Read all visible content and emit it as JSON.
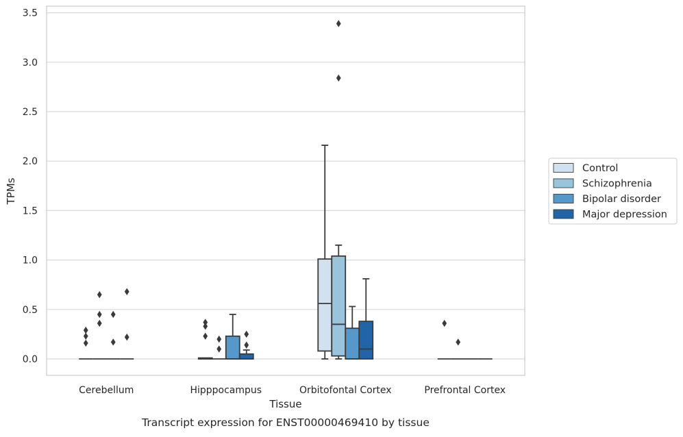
{
  "chart_data": {
    "type": "box",
    "title": "",
    "caption": "Transcript expression for ENST00000469410 by tissue",
    "xlabel": "Tissue",
    "ylabel": "TPMs",
    "ylim": [
      -0.17,
      3.56
    ],
    "yticks": [
      0.0,
      0.5,
      1.0,
      1.5,
      2.0,
      2.5,
      3.0,
      3.5
    ],
    "ytick_labels": [
      "0.0",
      "0.5",
      "1.0",
      "1.5",
      "2.0",
      "2.5",
      "3.0",
      "3.5"
    ],
    "grid": "horizontal",
    "legend_placement": "right",
    "categories": [
      "Cerebellum",
      "Hipppocampus",
      "Orbitofontal Cortex",
      "Prefrontal Cortex"
    ],
    "series": [
      {
        "name": "Control",
        "color": "#d1e1f0",
        "boxes": [
          {
            "q1": 0.0,
            "median": 0.0,
            "q3": 0.0,
            "whisker_low": 0.0,
            "whisker_high": 0.0,
            "outliers": [
              0.29,
              0.23,
              0.16
            ]
          },
          {
            "q1": 0.0,
            "median": 0.0,
            "q3": 0.01,
            "whisker_low": 0.0,
            "whisker_high": 0.01,
            "outliers": [
              0.37,
              0.33,
              0.23
            ]
          },
          {
            "q1": 0.08,
            "median": 0.56,
            "q3": 1.01,
            "whisker_low": 0.0,
            "whisker_high": 2.16,
            "outliers": []
          },
          {
            "q1": 0.0,
            "median": 0.0,
            "q3": 0.0,
            "whisker_low": 0.0,
            "whisker_high": 0.0,
            "outliers": [
              0.36
            ]
          }
        ]
      },
      {
        "name": "Schizophrenia",
        "color": "#9ac3dc",
        "boxes": [
          {
            "q1": 0.0,
            "median": 0.0,
            "q3": 0.0,
            "whisker_low": 0.0,
            "whisker_high": 0.0,
            "outliers": [
              0.65,
              0.45,
              0.36
            ]
          },
          {
            "q1": 0.0,
            "median": 0.0,
            "q3": 0.0,
            "whisker_low": 0.0,
            "whisker_high": 0.0,
            "outliers": [
              0.2,
              0.1
            ]
          },
          {
            "q1": 0.03,
            "median": 0.35,
            "q3": 1.04,
            "whisker_low": 0.0,
            "whisker_high": 1.15,
            "outliers": [
              3.39,
              2.84
            ]
          },
          {
            "q1": 0.0,
            "median": 0.0,
            "q3": 0.0,
            "whisker_low": 0.0,
            "whisker_high": 0.0,
            "outliers": [
              0.17
            ]
          }
        ]
      },
      {
        "name": "Bipolar disorder",
        "color": "#5598c9",
        "boxes": [
          {
            "q1": 0.0,
            "median": 0.0,
            "q3": 0.0,
            "whisker_low": 0.0,
            "whisker_high": 0.0,
            "outliers": [
              0.45,
              0.17
            ]
          },
          {
            "q1": 0.0,
            "median": 0.0,
            "q3": 0.23,
            "whisker_low": 0.0,
            "whisker_high": 0.45,
            "outliers": []
          },
          {
            "q1": 0.0,
            "median": 0.0,
            "q3": 0.31,
            "whisker_low": 0.0,
            "whisker_high": 0.53,
            "outliers": []
          },
          {
            "q1": 0.0,
            "median": 0.0,
            "q3": 0.0,
            "whisker_low": 0.0,
            "whisker_high": 0.0,
            "outliers": []
          }
        ]
      },
      {
        "name": "Major depression",
        "color": "#2264a8",
        "boxes": [
          {
            "q1": 0.0,
            "median": 0.0,
            "q3": 0.0,
            "whisker_low": 0.0,
            "whisker_high": 0.0,
            "outliers": [
              0.68,
              0.22
            ]
          },
          {
            "q1": 0.0,
            "median": 0.0,
            "q3": 0.05,
            "whisker_low": 0.0,
            "whisker_high": 0.09,
            "outliers": [
              0.25,
              0.14
            ]
          },
          {
            "q1": 0.0,
            "median": 0.1,
            "q3": 0.38,
            "whisker_low": 0.0,
            "whisker_high": 0.81,
            "outliers": []
          },
          {
            "q1": 0.0,
            "median": 0.0,
            "q3": 0.0,
            "whisker_low": 0.0,
            "whisker_high": 0.0,
            "outliers": []
          }
        ]
      }
    ]
  }
}
